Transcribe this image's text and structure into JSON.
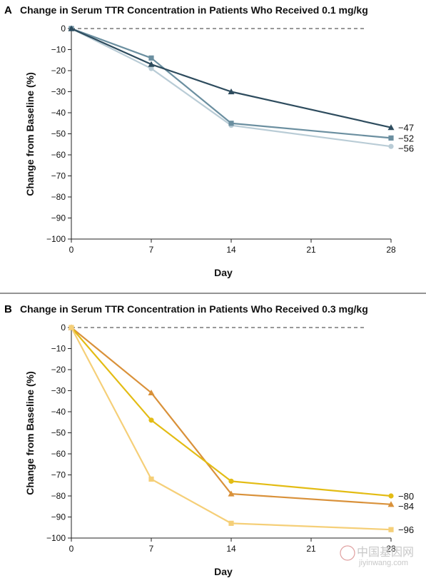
{
  "chart_data": [
    {
      "type": "line",
      "panel": "A",
      "title": "Change in Serum TTR Concentration in Patients Who Received 0.1 mg/kg",
      "xlabel": "Day",
      "ylabel": "Change from Baseline (%)",
      "xlim": [
        0,
        28
      ],
      "ylim": [
        -100,
        0
      ],
      "xticks": [
        0,
        7,
        14,
        21,
        28
      ],
      "yticks": [
        0,
        -10,
        -20,
        -30,
        -40,
        -50,
        -60,
        -70,
        -80,
        -90,
        -100
      ],
      "ytick_labels": [
        "0",
        "−10",
        "−20",
        "−30",
        "−40",
        "−50",
        "−60",
        "−70",
        "−80",
        "−90",
        "−100"
      ],
      "x": [
        0,
        7,
        14,
        28
      ],
      "series": [
        {
          "values": [
            0,
            -19,
            -46,
            -56
          ],
          "marker": "circle",
          "color": "#b9ccd6",
          "end_label": "−56"
        },
        {
          "values": [
            0,
            -14,
            -45,
            -52
          ],
          "marker": "square",
          "color": "#6b8fa0",
          "end_label": "−52"
        },
        {
          "values": [
            0,
            -17,
            -30,
            -47
          ],
          "marker": "triangle",
          "color": "#2e4c5e",
          "end_label": "−47"
        }
      ],
      "reference_line": 0
    },
    {
      "type": "line",
      "panel": "B",
      "title": "Change in Serum TTR Concentration in Patients Who Received 0.3 mg/kg",
      "xlabel": "Day",
      "ylabel": "Change from Baseline (%)",
      "xlim": [
        0,
        28
      ],
      "ylim": [
        -100,
        0
      ],
      "xticks": [
        0,
        7,
        14,
        21,
        28
      ],
      "yticks": [
        0,
        -10,
        -20,
        -30,
        -40,
        -50,
        -60,
        -70,
        -80,
        -90,
        -100
      ],
      "ytick_labels": [
        "0",
        "−10",
        "−20",
        "−30",
        "−40",
        "−50",
        "−60",
        "−70",
        "−80",
        "−90",
        "−100"
      ],
      "x": [
        0,
        7,
        14,
        28
      ],
      "series": [
        {
          "values": [
            0,
            -31,
            -79,
            -84
          ],
          "marker": "triangle",
          "color": "#d9913a",
          "end_label": "−84"
        },
        {
          "values": [
            0,
            -44,
            -73,
            -80
          ],
          "marker": "circle",
          "color": "#e3bc14",
          "end_label": "−80"
        },
        {
          "values": [
            0,
            -72,
            -93,
            -96
          ],
          "marker": "square",
          "color": "#f5cf78",
          "end_label": "−96"
        }
      ],
      "reference_line": 0
    }
  ],
  "watermark": {
    "line1": "中国基因网",
    "line2": "jiyinwang.com"
  }
}
